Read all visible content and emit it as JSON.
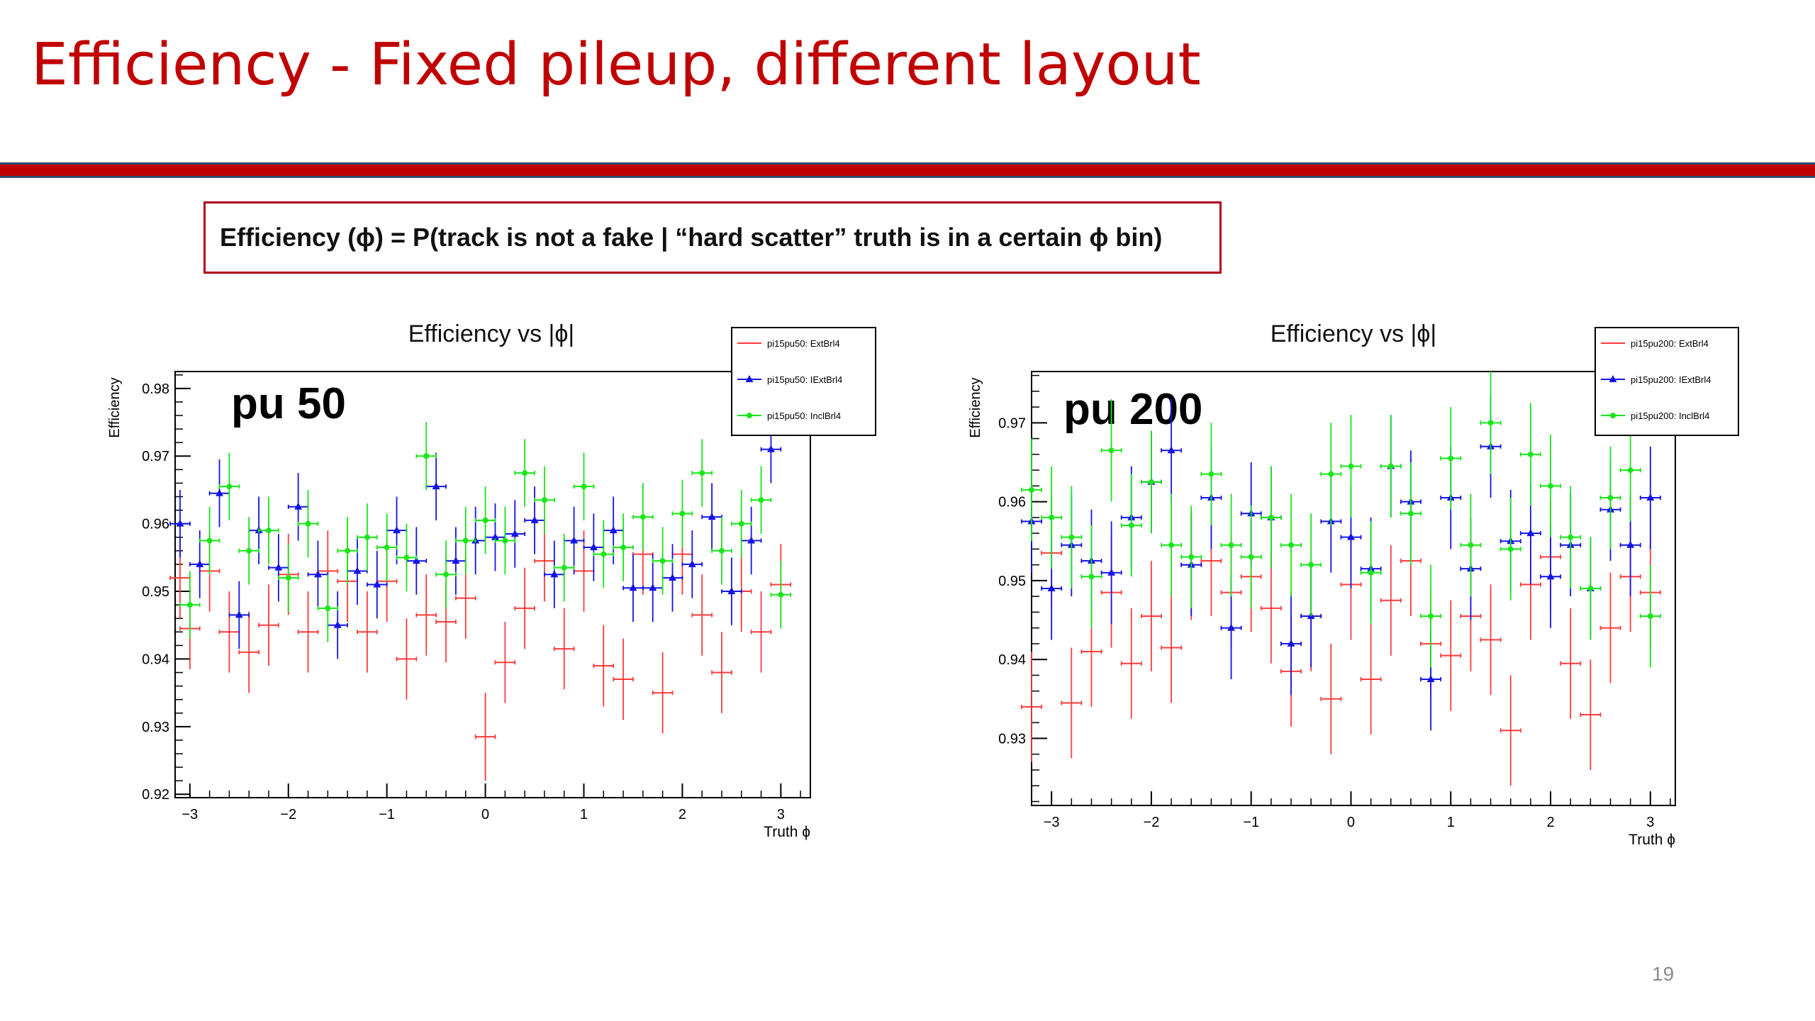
{
  "slide": {
    "title": "Efficiency - Fixed pileup, different layout",
    "definition": "Efficiency (ϕ) = P(track is not a fake | “hard scatter” truth is in a certain ϕ bin)",
    "page_number": "19"
  },
  "colors": {
    "title": "#c00000",
    "ext": "#ff3b3b",
    "iext": "#1414e6",
    "incl": "#19e619"
  },
  "chart_data": [
    {
      "type": "scatter",
      "title": "Efficiency vs |ϕ|",
      "annotation": "pu 50",
      "xlabel": "Truth ϕ",
      "ylabel": "Efficiency",
      "xlim": [
        -3.15,
        3.3
      ],
      "ylim": [
        0.9195,
        0.9825
      ],
      "xticks": [
        -3,
        -2,
        -1,
        0,
        1,
        2,
        3
      ],
      "yticks": [
        0.92,
        0.93,
        0.94,
        0.95,
        0.96,
        0.97,
        0.98
      ],
      "ytick_labels": [
        "0.92",
        "0.93",
        "0.94",
        "0.95",
        "0.96",
        "0.97",
        "0.98"
      ],
      "legend_position": "top-right",
      "series": [
        {
          "name": "pi15pu50: ExtBrl4",
          "marker": "none",
          "color": "#ff3b3b",
          "x": [
            -3.1,
            -3.0,
            -2.8,
            -2.6,
            -2.4,
            -2.2,
            -2.0,
            -1.8,
            -1.6,
            -1.4,
            -1.2,
            -1.0,
            -0.8,
            -0.6,
            -0.4,
            -0.2,
            0.0,
            0.2,
            0.4,
            0.6,
            0.8,
            1.0,
            1.2,
            1.4,
            1.6,
            1.8,
            2.0,
            2.2,
            2.4,
            2.6,
            2.8,
            3.0
          ],
          "y": [
            0.952,
            0.9445,
            0.953,
            0.944,
            0.941,
            0.945,
            0.9525,
            0.944,
            0.953,
            0.9515,
            0.944,
            0.9515,
            0.94,
            0.9465,
            0.9455,
            0.949,
            0.9285,
            0.9395,
            0.9475,
            0.9545,
            0.9415,
            0.953,
            0.939,
            0.937,
            0.9555,
            0.935,
            0.9555,
            0.9465,
            0.938,
            0.95,
            0.944,
            0.951
          ],
          "err": [
            0.006,
            0.006,
            0.006,
            0.006,
            0.006,
            0.006,
            0.006,
            0.006,
            0.006,
            0.006,
            0.006,
            0.006,
            0.006,
            0.006,
            0.006,
            0.006,
            0.0065,
            0.006,
            0.006,
            0.006,
            0.006,
            0.006,
            0.006,
            0.006,
            0.006,
            0.006,
            0.006,
            0.006,
            0.006,
            0.006,
            0.006,
            0.006
          ]
        },
        {
          "name": "pi15pu50: IExtBrl4",
          "marker": "triangle",
          "color": "#1414e6",
          "x": [
            -3.1,
            -2.9,
            -2.7,
            -2.5,
            -2.3,
            -2.1,
            -1.9,
            -1.7,
            -1.5,
            -1.3,
            -1.1,
            -0.9,
            -0.7,
            -0.5,
            -0.3,
            -0.1,
            0.1,
            0.3,
            0.5,
            0.7,
            0.9,
            1.1,
            1.3,
            1.5,
            1.7,
            1.9,
            2.1,
            2.3,
            2.5,
            2.7,
            2.9
          ],
          "y": [
            0.96,
            0.954,
            0.9645,
            0.9465,
            0.959,
            0.9535,
            0.9625,
            0.9525,
            0.945,
            0.953,
            0.951,
            0.959,
            0.9545,
            0.9655,
            0.9545,
            0.9575,
            0.958,
            0.9585,
            0.9605,
            0.9525,
            0.9575,
            0.9565,
            0.959,
            0.9505,
            0.9505,
            0.952,
            0.954,
            0.961,
            0.95,
            0.9575,
            0.971
          ],
          "err": [
            0.005,
            0.005,
            0.005,
            0.005,
            0.005,
            0.005,
            0.005,
            0.005,
            0.005,
            0.005,
            0.005,
            0.005,
            0.005,
            0.005,
            0.005,
            0.005,
            0.005,
            0.005,
            0.005,
            0.005,
            0.005,
            0.005,
            0.005,
            0.005,
            0.005,
            0.005,
            0.005,
            0.005,
            0.005,
            0.005,
            0.005
          ]
        },
        {
          "name": "pi15pu50: InclBrl4",
          "marker": "circle",
          "color": "#19e619",
          "x": [
            -3.0,
            -2.8,
            -2.6,
            -2.4,
            -2.2,
            -2.0,
            -1.8,
            -1.6,
            -1.4,
            -1.2,
            -1.0,
            -0.8,
            -0.6,
            -0.4,
            -0.2,
            0.0,
            0.2,
            0.4,
            0.6,
            0.8,
            1.0,
            1.2,
            1.4,
            1.6,
            1.8,
            2.0,
            2.2,
            2.4,
            2.6,
            2.8,
            3.0
          ],
          "y": [
            0.948,
            0.9575,
            0.9655,
            0.956,
            0.959,
            0.952,
            0.96,
            0.9475,
            0.956,
            0.958,
            0.9565,
            0.955,
            0.97,
            0.9525,
            0.9575,
            0.9605,
            0.9575,
            0.9675,
            0.9635,
            0.9535,
            0.9655,
            0.9555,
            0.9565,
            0.961,
            0.9545,
            0.9615,
            0.9675,
            0.956,
            0.96,
            0.9635,
            0.9495
          ],
          "err": [
            0.005,
            0.005,
            0.005,
            0.005,
            0.005,
            0.005,
            0.005,
            0.005,
            0.005,
            0.005,
            0.005,
            0.005,
            0.005,
            0.005,
            0.005,
            0.005,
            0.005,
            0.005,
            0.005,
            0.005,
            0.005,
            0.005,
            0.005,
            0.005,
            0.005,
            0.005,
            0.005,
            0.005,
            0.005,
            0.005,
            0.005
          ]
        }
      ]
    },
    {
      "type": "scatter",
      "title": "Efficiency vs |ϕ|",
      "annotation": "pu 200",
      "xlabel": "Truth ϕ",
      "ylabel": "Efficiency",
      "xlim": [
        -3.2,
        3.25
      ],
      "ylim": [
        0.9215,
        0.9765
      ],
      "xticks": [
        -3,
        -2,
        -1,
        0,
        1,
        2,
        3
      ],
      "yticks": [
        0.93,
        0.94,
        0.95,
        0.96,
        0.97
      ],
      "ytick_labels": [
        "0.93",
        "0.94",
        "0.95",
        "0.96",
        "0.97"
      ],
      "legend_position": "top-right",
      "series": [
        {
          "name": "pi15pu200: ExtBrl4",
          "marker": "none",
          "color": "#ff3b3b",
          "x": [
            -3.2,
            -3.0,
            -2.8,
            -2.6,
            -2.4,
            -2.2,
            -2.0,
            -1.8,
            -1.6,
            -1.4,
            -1.2,
            -1.0,
            -0.8,
            -0.6,
            -0.4,
            -0.2,
            0.0,
            0.2,
            0.4,
            0.6,
            0.8,
            1.0,
            1.2,
            1.4,
            1.6,
            1.8,
            2.0,
            2.2,
            2.4,
            2.6,
            2.8,
            3.0
          ],
          "y": [
            0.934,
            0.9535,
            0.9345,
            0.941,
            0.9485,
            0.9395,
            0.9455,
            0.9415,
            0.952,
            0.9525,
            0.9485,
            0.9505,
            0.9465,
            0.9385,
            0.9455,
            0.935,
            0.9495,
            0.9375,
            0.9475,
            0.9525,
            0.942,
            0.9405,
            0.9455,
            0.9425,
            0.931,
            0.9495,
            0.953,
            0.9395,
            0.933,
            0.944,
            0.9505,
            0.9485
          ],
          "err": [
            0.007,
            0.007,
            0.007,
            0.007,
            0.007,
            0.007,
            0.007,
            0.007,
            0.007,
            0.007,
            0.007,
            0.007,
            0.007,
            0.007,
            0.007,
            0.007,
            0.007,
            0.007,
            0.007,
            0.007,
            0.007,
            0.007,
            0.007,
            0.007,
            0.007,
            0.007,
            0.007,
            0.007,
            0.007,
            0.007,
            0.007,
            0.007
          ]
        },
        {
          "name": "pi15pu200: IExtBrl4",
          "marker": "triangle",
          "color": "#1414e6",
          "x": [
            -3.2,
            -3.0,
            -2.8,
            -2.6,
            -2.4,
            -2.2,
            -2.0,
            -1.8,
            -1.6,
            -1.4,
            -1.2,
            -1.0,
            -0.8,
            -0.6,
            -0.4,
            -0.2,
            0.0,
            0.2,
            0.4,
            0.6,
            0.8,
            1.0,
            1.2,
            1.4,
            1.6,
            1.8,
            2.0,
            2.2,
            2.4,
            2.6,
            2.8,
            3.0
          ],
          "y": [
            0.9575,
            0.949,
            0.9545,
            0.9525,
            0.951,
            0.958,
            0.9625,
            0.9665,
            0.952,
            0.9605,
            0.944,
            0.9585,
            0.958,
            0.942,
            0.9455,
            0.9575,
            0.9555,
            0.9515,
            0.9645,
            0.96,
            0.9375,
            0.9605,
            0.9515,
            0.967,
            0.955,
            0.956,
            0.9505,
            0.9545,
            0.949,
            0.959,
            0.9545,
            0.9605
          ],
          "err": [
            0.0065,
            0.0065,
            0.0065,
            0.0065,
            0.0065,
            0.0065,
            0.0065,
            0.0065,
            0.0065,
            0.0065,
            0.0065,
            0.0065,
            0.0065,
            0.0065,
            0.0065,
            0.0065,
            0.0065,
            0.0065,
            0.0065,
            0.0065,
            0.0065,
            0.0065,
            0.0065,
            0.0065,
            0.0065,
            0.0065,
            0.0065,
            0.0065,
            0.0065,
            0.0065,
            0.0065,
            0.0065
          ]
        },
        {
          "name": "pi15pu200: InclBrl4",
          "marker": "circle",
          "color": "#19e619",
          "x": [
            -3.2,
            -3.0,
            -2.8,
            -2.6,
            -2.4,
            -2.2,
            -2.0,
            -1.8,
            -1.6,
            -1.4,
            -1.2,
            -1.0,
            -0.8,
            -0.6,
            -0.4,
            -0.2,
            0.0,
            0.2,
            0.4,
            0.6,
            0.8,
            1.0,
            1.2,
            1.4,
            1.6,
            1.8,
            2.0,
            2.2,
            2.4,
            2.6,
            2.8,
            3.0
          ],
          "y": [
            0.9615,
            0.958,
            0.9555,
            0.9505,
            0.9665,
            0.957,
            0.9625,
            0.9545,
            0.953,
            0.9635,
            0.9545,
            0.953,
            0.958,
            0.9545,
            0.952,
            0.9635,
            0.9645,
            0.951,
            0.9645,
            0.9585,
            0.9455,
            0.9655,
            0.9545,
            0.97,
            0.954,
            0.966,
            0.962,
            0.9555,
            0.949,
            0.9605,
            0.964,
            0.9455
          ],
          "err": [
            0.0065,
            0.0065,
            0.0065,
            0.0065,
            0.0065,
            0.0065,
            0.0065,
            0.0065,
            0.0065,
            0.0065,
            0.0065,
            0.0065,
            0.0065,
            0.0065,
            0.0065,
            0.0065,
            0.0065,
            0.0065,
            0.0065,
            0.0065,
            0.0065,
            0.0065,
            0.0065,
            0.0065,
            0.0065,
            0.0065,
            0.0065,
            0.0065,
            0.0065,
            0.0065,
            0.0065,
            0.0065
          ]
        }
      ]
    }
  ]
}
